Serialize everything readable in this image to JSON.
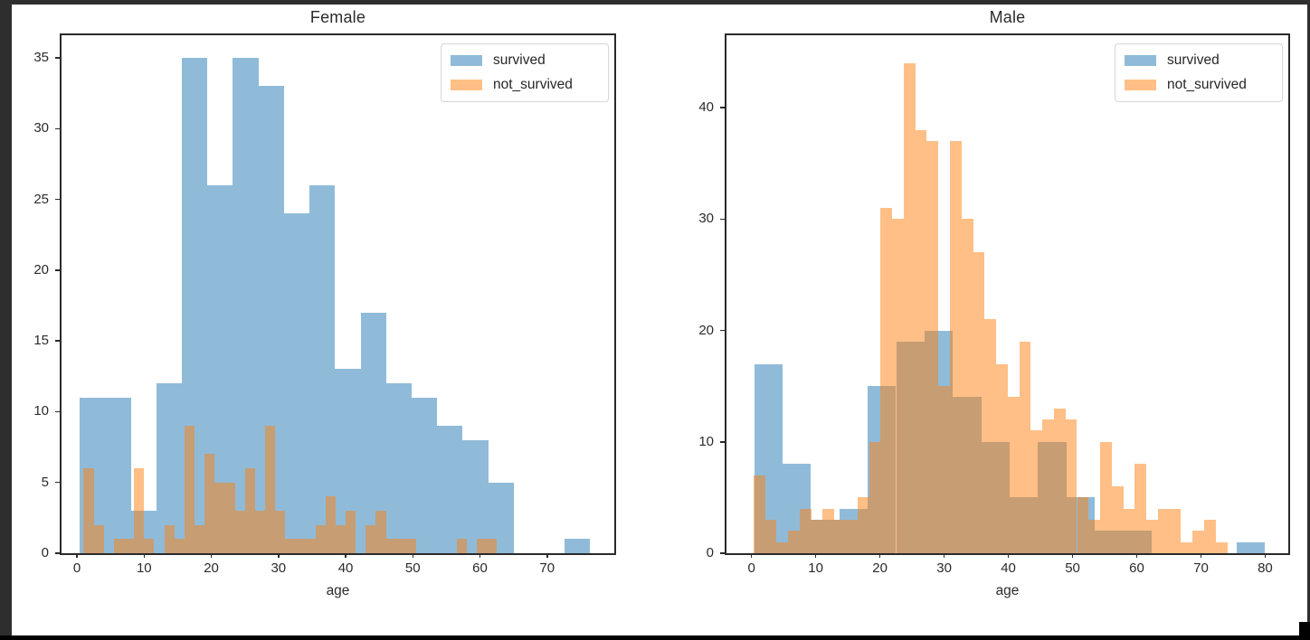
{
  "window": {
    "background_color": "#2e2e2e",
    "figure_background_color": "#ffffff",
    "bottom_bar_color": "#020202",
    "corner_block_color": "#020202",
    "axis_color": "#2a2a2a",
    "text_color": "#2b2b2b"
  },
  "series_colors": {
    "survived": "#1f77b4",
    "not_survived": "#ff7f0e",
    "fill_alpha": 0.5,
    "overlap_appearance": "#c79d73"
  },
  "chart_data": [
    {
      "type": "bar",
      "subtype": "overlapping_histogram",
      "title": "Female",
      "xlabel": "age",
      "ylabel": "",
      "grid": false,
      "legend_position": "upper right",
      "legend": [
        "survived",
        "not_survived"
      ],
      "xlim": [
        -2.3,
        80.0
      ],
      "ylim": [
        0,
        36.6
      ],
      "xticks": [
        0,
        10,
        20,
        30,
        40,
        50,
        60,
        70
      ],
      "yticks": [
        0,
        5,
        10,
        15,
        20,
        25,
        30,
        35
      ],
      "series": [
        {
          "name": "survived",
          "color": "#1f77b4",
          "bin_start": 0.42,
          "bin_width": 3.8,
          "counts": [
            11,
            11,
            3,
            12,
            35,
            26,
            35,
            33,
            24,
            26,
            13,
            17,
            12,
            11,
            9,
            8,
            5,
            0,
            0,
            1
          ]
        },
        {
          "name": "not_survived",
          "color": "#ff7f0e",
          "bin_start": 1.0,
          "bin_width": 1.5,
          "counts": [
            6,
            2,
            0,
            1,
            1,
            6,
            1,
            0,
            2,
            1,
            9,
            2,
            7,
            5,
            5,
            3,
            6,
            3,
            9,
            3,
            1,
            1,
            1,
            2,
            4,
            2,
            3,
            0,
            2,
            3,
            1,
            1,
            1,
            0,
            0,
            0,
            0,
            1,
            0,
            1,
            1
          ]
        }
      ]
    },
    {
      "type": "bar",
      "subtype": "overlapping_histogram",
      "title": "Male",
      "xlabel": "age",
      "ylabel": "",
      "grid": false,
      "legend_position": "upper right",
      "legend": [
        "survived",
        "not_survived"
      ],
      "xlim": [
        -3.9,
        83.6
      ],
      "ylim": [
        0,
        46.5
      ],
      "xticks": [
        0,
        10,
        20,
        30,
        40,
        50,
        60,
        70,
        80
      ],
      "yticks": [
        0,
        10,
        20,
        30,
        40
      ],
      "series": [
        {
          "name": "survived",
          "color": "#1f77b4",
          "bin_start": 0.42,
          "bin_width": 4.42,
          "counts": [
            17,
            8,
            3,
            4,
            15,
            19,
            20,
            14,
            10,
            5,
            10,
            5,
            2,
            2,
            0,
            0,
            0,
            1
          ]
        },
        {
          "name": "not_survived",
          "color": "#ff7f0e",
          "bin_start": 0.3,
          "bin_width": 1.8,
          "counts": [
            7,
            3,
            1,
            2,
            4,
            3,
            4,
            3,
            3,
            5,
            10,
            31,
            30,
            44,
            38,
            37,
            15,
            37,
            30,
            27,
            21,
            17,
            14,
            19,
            11,
            12,
            13,
            12,
            5,
            3,
            10,
            6,
            4,
            8,
            3,
            4,
            4,
            1,
            2,
            3,
            1
          ]
        }
      ]
    }
  ]
}
